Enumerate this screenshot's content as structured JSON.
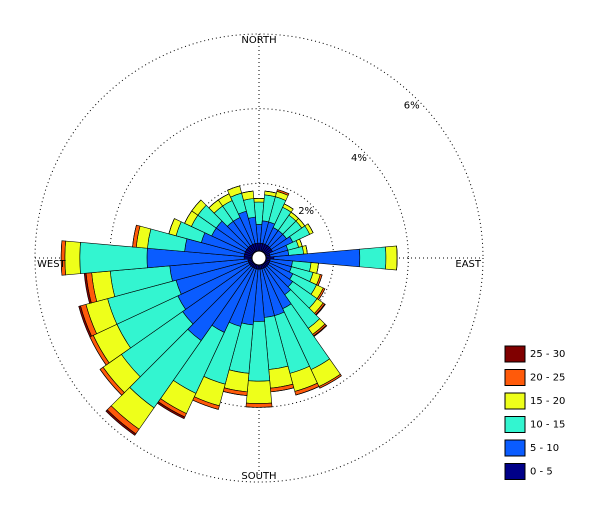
{
  "chart_data": {
    "type": "windrose",
    "compass": [
      "NORTH",
      "EAST",
      "SOUTH",
      "WEST"
    ],
    "rlim": [
      0,
      6
    ],
    "rticks": [
      {
        "value": 2,
        "label": "2%"
      },
      {
        "value": 4,
        "label": "4%"
      },
      {
        "value": 6,
        "label": "6%"
      }
    ],
    "series": [
      {
        "name": "0 - 5",
        "color": "#000088",
        "values": [
          0.4,
          0.4,
          0.4,
          0.4,
          0.4,
          0.4,
          0.4,
          0.3,
          0.3,
          0.4,
          0.3,
          0.3,
          0.3,
          0.3,
          0.3,
          0.3,
          0.3,
          0.3,
          0.3,
          0.3,
          0.3,
          0.3,
          0.3,
          0.3,
          0.3,
          0.3,
          0.3,
          0.4,
          0.4,
          0.4,
          0.4,
          0.4,
          0.4,
          0.4,
          0.4,
          0.4
        ]
      },
      {
        "name": "5 - 10",
        "color": "#0a5cff",
        "values": [
          0.5,
          0.6,
          0.6,
          0.5,
          0.5,
          0.5,
          0.6,
          0.5,
          0.5,
          2.3,
          0.6,
          0.6,
          0.7,
          0.8,
          0.9,
          1.2,
          1.3,
          1.3,
          1.4,
          1.5,
          1.6,
          1.9,
          2.4,
          2.2,
          2.1,
          2.0,
          2.1,
          2.6,
          1.6,
          1.2,
          1.0,
          1.0,
          0.8,
          0.8,
          0.9,
          0.7
        ]
      },
      {
        "name": "10 - 15",
        "color": "#33f5d0",
        "values": [
          0.6,
          0.7,
          0.7,
          0.6,
          0.5,
          0.5,
          0.5,
          0.3,
          0.4,
          0.7,
          0.5,
          0.6,
          0.7,
          0.8,
          1.1,
          1.8,
          1.6,
          1.4,
          1.6,
          1.3,
          1.6,
          1.8,
          2.2,
          2.0,
          1.8,
          1.9,
          1.6,
          1.8,
          1.0,
          0.7,
          0.6,
          0.6,
          0.5,
          0.5,
          0.5,
          0.5
        ]
      },
      {
        "name": "15 - 20",
        "color": "#eeff1a",
        "values": [
          0.1,
          0.1,
          0.15,
          0.1,
          0.1,
          0.1,
          0.1,
          0.1,
          0.1,
          0.3,
          0.2,
          0.2,
          0.2,
          0.2,
          0.2,
          0.5,
          0.5,
          0.5,
          0.6,
          0.5,
          0.6,
          0.6,
          0.7,
          0.6,
          0.7,
          0.6,
          0.5,
          0.4,
          0.3,
          0.2,
          0.2,
          0.2,
          0.2,
          0.2,
          0.2,
          0.2
        ]
      },
      {
        "name": "20 - 25",
        "color": "#ff5a0a",
        "values": [
          0,
          0,
          0.05,
          0,
          0,
          0,
          0,
          0,
          0,
          0,
          0,
          0.05,
          0.05,
          0.05,
          0.05,
          0.05,
          0.1,
          0.1,
          0.1,
          0.1,
          0.1,
          0.1,
          0.15,
          0.1,
          0.1,
          0.15,
          0.15,
          0.1,
          0.1,
          0,
          0,
          0,
          0,
          0,
          0,
          0
        ]
      },
      {
        "name": "25 - 30",
        "color": "#800000",
        "values": [
          0,
          0,
          0,
          0,
          0,
          0,
          0,
          0,
          0,
          0,
          0,
          0,
          0,
          0.02,
          0.02,
          0,
          0,
          0,
          0,
          0,
          0,
          0.05,
          0.05,
          0,
          0,
          0.05,
          0.05,
          0,
          0,
          0,
          0,
          0,
          0,
          0,
          0,
          0
        ]
      }
    ]
  }
}
